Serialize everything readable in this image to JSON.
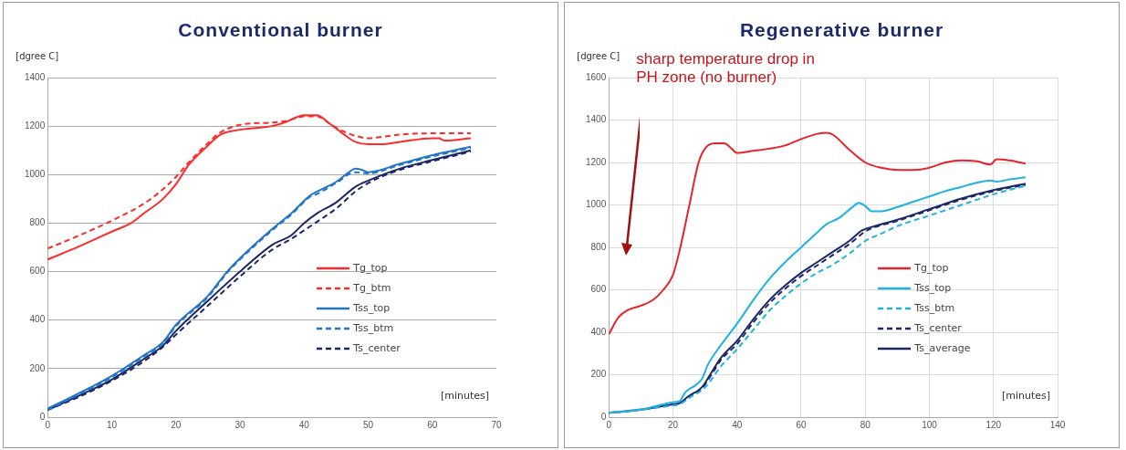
{
  "chart_data": [
    {
      "type": "line",
      "title": "Conventional burner",
      "ylabel": "[dgree C]",
      "xlabel": "[minutes]",
      "xlim": [
        0,
        70
      ],
      "xticks": [
        0,
        10,
        20,
        30,
        40,
        50,
        60,
        70
      ],
      "ylim": [
        0,
        1400
      ],
      "yticks": [
        0,
        200,
        400,
        600,
        800,
        1000,
        1200,
        1400
      ],
      "grid": "y",
      "legend": "right",
      "marker": "none",
      "series": [
        {
          "name": "Tg_top",
          "color": "#ff2a2a",
          "line_style": "solid",
          "x": [
            0,
            5,
            10,
            13,
            15,
            18,
            20,
            22,
            25,
            27,
            30,
            35,
            37,
            40,
            42,
            44,
            46,
            48,
            50,
            52,
            55,
            60,
            61,
            62,
            66
          ],
          "values": [
            650,
            705,
            765,
            800,
            840,
            900,
            960,
            1040,
            1120,
            1165,
            1185,
            1200,
            1215,
            1245,
            1245,
            1210,
            1170,
            1135,
            1125,
            1125,
            1135,
            1150,
            1150,
            1140,
            1150
          ]
        },
        {
          "name": "Tg_btm",
          "color": "#ff2a2a",
          "line_style": "dashed",
          "x": [
            0,
            5,
            10,
            15,
            18,
            20,
            22,
            25,
            27,
            30,
            35,
            37,
            40,
            42,
            44,
            46,
            48,
            50,
            52,
            55,
            60,
            66
          ],
          "values": [
            695,
            750,
            810,
            880,
            940,
            990,
            1050,
            1130,
            1175,
            1205,
            1215,
            1220,
            1240,
            1240,
            1210,
            1180,
            1160,
            1150,
            1155,
            1165,
            1170,
            1170
          ]
        },
        {
          "name": "Tss_top",
          "color": "#1f74cc",
          "line_style": "solid",
          "x": [
            0,
            5,
            10,
            15,
            18,
            20,
            25,
            28,
            30,
            35,
            38,
            41,
            42,
            45,
            47,
            48,
            49,
            50,
            55,
            60,
            66
          ],
          "values": [
            35,
            100,
            170,
            255,
            310,
            380,
            500,
            600,
            655,
            775,
            840,
            915,
            930,
            970,
            1010,
            1025,
            1020,
            1010,
            1045,
            1080,
            1115
          ]
        },
        {
          "name": "Tss_btm",
          "color": "#1f74cc",
          "line_style": "dashed",
          "x": [
            0,
            5,
            10,
            15,
            18,
            20,
            25,
            28,
            30,
            35,
            38,
            41,
            42,
            45,
            48,
            50,
            55,
            60,
            66
          ],
          "values": [
            30,
            95,
            165,
            250,
            305,
            375,
            495,
            595,
            650,
            770,
            835,
            910,
            920,
            965,
            1010,
            1005,
            1040,
            1075,
            1110
          ]
        },
        {
          "name": "Ts_center",
          "color": "#1a2766",
          "line_style": "dashed",
          "x": [
            0,
            5,
            10,
            15,
            18,
            20,
            25,
            30,
            35,
            38,
            40,
            42,
            45,
            48,
            50,
            55,
            60,
            66
          ],
          "values": [
            30,
            85,
            150,
            230,
            290,
            340,
            460,
            580,
            690,
            735,
            770,
            805,
            860,
            930,
            965,
            1020,
            1055,
            1095
          ]
        },
        {
          "color": "#1a2766",
          "line_style": "solid",
          "x": [
            0,
            5,
            10,
            15,
            18,
            20,
            25,
            30,
            35,
            38,
            40,
            42,
            45,
            48,
            50,
            55,
            60,
            66
          ],
          "values": [
            30,
            90,
            155,
            240,
            295,
            355,
            480,
            600,
            710,
            750,
            800,
            840,
            885,
            950,
            975,
            1025,
            1060,
            1100
          ]
        }
      ]
    },
    {
      "type": "line",
      "title": "Regenerative burner",
      "ylabel": "[dgree C]",
      "xlabel": "[minutes]",
      "xlim": [
        0,
        140
      ],
      "xticks": [
        0,
        20,
        40,
        60,
        80,
        100,
        120,
        140
      ],
      "ylim": [
        0,
        1600
      ],
      "yticks": [
        0,
        200,
        400,
        600,
        800,
        1000,
        1200,
        1400,
        1600
      ],
      "grid": true,
      "legend": "right",
      "marker": "none",
      "annotations": [
        "sharp temperature drop in PH zone (no burner)"
      ],
      "series": [
        {
          "name": "Tg_top",
          "color": "#e8222a",
          "line_style": "solid",
          "x": [
            0,
            3,
            6,
            10,
            14,
            17,
            20,
            22,
            25,
            28,
            30,
            33,
            36,
            38,
            40,
            45,
            50,
            55,
            60,
            65,
            68,
            70,
            75,
            80,
            85,
            90,
            95,
            100,
            105,
            110,
            115,
            119,
            121,
            125,
            130
          ],
          "values": [
            390,
            470,
            505,
            525,
            555,
            600,
            670,
            780,
            990,
            1200,
            1265,
            1290,
            1290,
            1270,
            1245,
            1255,
            1265,
            1280,
            1310,
            1335,
            1340,
            1330,
            1260,
            1200,
            1175,
            1165,
            1165,
            1175,
            1200,
            1210,
            1205,
            1190,
            1215,
            1210,
            1195
          ]
        },
        {
          "name": "Tss_top",
          "color": "#1eb2e4",
          "line_style": "solid",
          "x": [
            0,
            10,
            20,
            22,
            24,
            27,
            29,
            31,
            35,
            40,
            45,
            50,
            55,
            60,
            65,
            68,
            72,
            76,
            78,
            80,
            82,
            85,
            90,
            95,
            100,
            105,
            110,
            115,
            119,
            121,
            125,
            130
          ],
          "values": [
            20,
            35,
            70,
            75,
            120,
            150,
            180,
            250,
            340,
            440,
            550,
            650,
            730,
            800,
            870,
            910,
            940,
            990,
            1010,
            995,
            970,
            970,
            990,
            1015,
            1040,
            1065,
            1085,
            1105,
            1115,
            1110,
            1120,
            1130
          ]
        },
        {
          "name": "Tss_btm",
          "color": "#1eb2e4",
          "line_style": "dashed",
          "x": [
            0,
            20,
            22,
            25,
            30,
            35,
            40,
            45,
            50,
            55,
            60,
            65,
            70,
            75,
            80,
            85,
            90,
            100,
            110,
            120,
            130
          ],
          "values": [
            20,
            55,
            60,
            90,
            140,
            240,
            320,
            410,
            500,
            570,
            630,
            680,
            720,
            770,
            830,
            865,
            900,
            950,
            1000,
            1050,
            1090
          ]
        },
        {
          "name": "Ts_center",
          "color": "#1a2766",
          "line_style": "dashed",
          "x": [
            0,
            10,
            20,
            22,
            25,
            29,
            32,
            35,
            40,
            45,
            50,
            55,
            60,
            65,
            70,
            75,
            80,
            83,
            90,
            100,
            110,
            120,
            130
          ],
          "values": [
            20,
            35,
            60,
            65,
            95,
            135,
            200,
            270,
            345,
            445,
            535,
            605,
            665,
            715,
            765,
            815,
            875,
            895,
            925,
            975,
            1025,
            1065,
            1095
          ]
        },
        {
          "name": "Ts_average",
          "color": "#1a2766",
          "line_style": "solid",
          "x": [
            0,
            10,
            20,
            22,
            25,
            29,
            32,
            35,
            40,
            45,
            50,
            55,
            60,
            65,
            70,
            75,
            79,
            83,
            90,
            100,
            110,
            120,
            130
          ],
          "values": [
            20,
            35,
            60,
            65,
            100,
            140,
            210,
            280,
            360,
            460,
            550,
            620,
            680,
            730,
            780,
            830,
            880,
            900,
            930,
            980,
            1030,
            1070,
            1100
          ]
        }
      ]
    }
  ]
}
